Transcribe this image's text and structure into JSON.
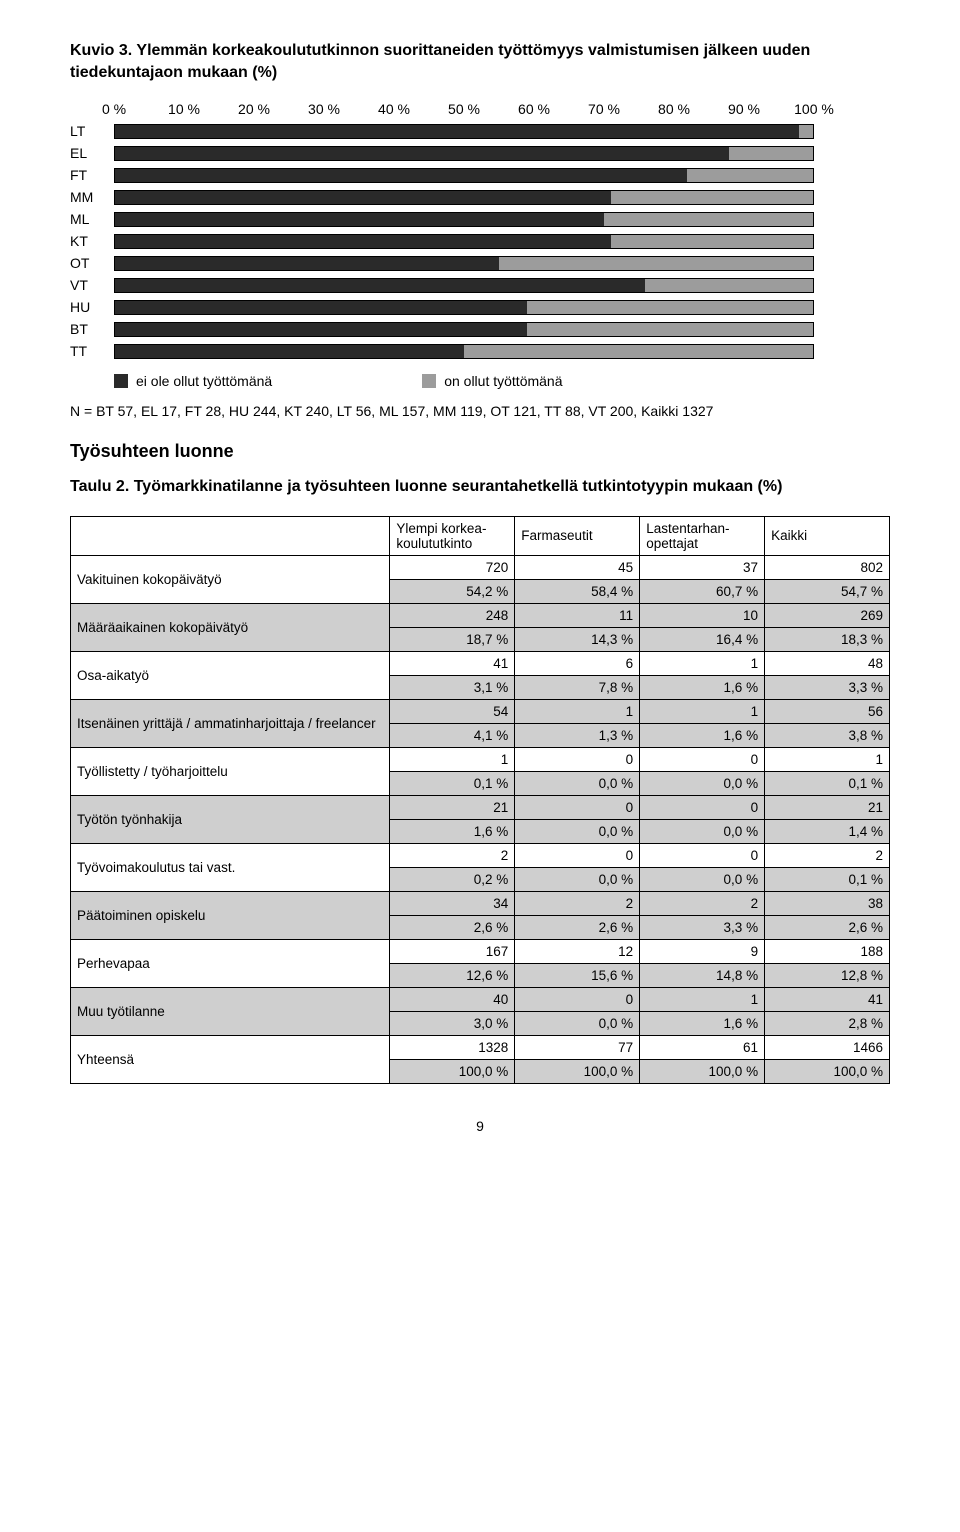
{
  "chart": {
    "caption_prefix": "Kuvio 3.",
    "caption_rest": " Ylemmän korkeakoulututkinnon suorittaneiden työttömyys valmistumisen jälkeen uuden tiedekuntajaon mukaan (%)",
    "type": "stacked-bar",
    "x_ticks": [
      "0 %",
      "10 %",
      "20 %",
      "30 %",
      "40 %",
      "50 %",
      "60 %",
      "70 %",
      "80 %",
      "90 %",
      "100 %"
    ],
    "legend": {
      "not": "ei ole ollut työttömänä",
      "yes": "on ollut työttömänä"
    },
    "colors": {
      "not": "#2a2a2a",
      "yes": "#9c9c9c",
      "border": "#000000",
      "bg": "#ffffff"
    },
    "rows": [
      {
        "label": "LT",
        "not": 98,
        "total": 100
      },
      {
        "label": "EL",
        "not": 88,
        "total": 100
      },
      {
        "label": "FT",
        "not": 82,
        "total": 100
      },
      {
        "label": "MM",
        "not": 71,
        "total": 100
      },
      {
        "label": "ML",
        "not": 70,
        "total": 100
      },
      {
        "label": "KT",
        "not": 71,
        "total": 100
      },
      {
        "label": "OT",
        "not": 55,
        "total": 100
      },
      {
        "label": "VT",
        "not": 76,
        "total": 100
      },
      {
        "label": "HU",
        "not": 59,
        "total": 100
      },
      {
        "label": "BT",
        "not": 59,
        "total": 100
      },
      {
        "label": "TT",
        "not": 50,
        "total": 100
      }
    ],
    "n_line": "N = BT 57,  EL 17, FT 28,  HU 244, KT 240, LT 56, ML 157, MM 119, OT 121, TT 88, VT 200, Kaikki 1327"
  },
  "section_heading": "Työsuhteen luonne",
  "table": {
    "caption_prefix": "Taulu 2.",
    "caption_rest": " Työmarkkinatilanne ja työsuhteen luonne seurantahetkellä tutkintotyypin mukaan (%)",
    "columns": [
      "",
      "Ylempi korkea­koulututkinto",
      "Farmaseutit",
      "Lastentarhan­opettajat",
      "Kaikki"
    ],
    "groups": [
      {
        "label": "Vakituinen kokopäivätyö",
        "vals": [
          "720",
          "45",
          "37",
          "802"
        ],
        "pcts": [
          "54,2 %",
          "58,4 %",
          "60,7 %",
          "54,7 %"
        ]
      },
      {
        "label": "Määräaikainen kokopäivätyö",
        "vals": [
          "248",
          "11",
          "10",
          "269"
        ],
        "pcts": [
          "18,7 %",
          "14,3 %",
          "16,4 %",
          "18,3 %"
        ]
      },
      {
        "label": "Osa-aikatyö",
        "vals": [
          "41",
          "6",
          "1",
          "48"
        ],
        "pcts": [
          "3,1 %",
          "7,8 %",
          "1,6 %",
          "3,3 %"
        ]
      },
      {
        "label": "Itsenäinen yrittäjä / ammatinharjoittaja / freelancer",
        "vals": [
          "54",
          "1",
          "1",
          "56"
        ],
        "pcts": [
          "4,1 %",
          "1,3 %",
          "1,6 %",
          "3,8 %"
        ]
      },
      {
        "label": "Työllistetty / työharjoittelu",
        "vals": [
          "1",
          "0",
          "0",
          "1"
        ],
        "pcts": [
          "0,1 %",
          "0,0 %",
          "0,0 %",
          "0,1 %"
        ]
      },
      {
        "label": "Työtön työnhakija",
        "vals": [
          "21",
          "0",
          "0",
          "21"
        ],
        "pcts": [
          "1,6 %",
          "0,0 %",
          "0,0 %",
          "1,4 %"
        ]
      },
      {
        "label": "Työvoimakoulutus tai vast.",
        "vals": [
          "2",
          "0",
          "0",
          "2"
        ],
        "pcts": [
          "0,2 %",
          "0,0 %",
          "0,0 %",
          "0,1 %"
        ]
      },
      {
        "label": "Päätoiminen opiskelu",
        "vals": [
          "34",
          "2",
          "2",
          "38"
        ],
        "pcts": [
          "2,6 %",
          "2,6 %",
          "3,3 %",
          "2,6 %"
        ]
      },
      {
        "label": "Perhevapaa",
        "vals": [
          "167",
          "12",
          "9",
          "188"
        ],
        "pcts": [
          "12,6 %",
          "15,6 %",
          "14,8 %",
          "12,8 %"
        ]
      },
      {
        "label": "Muu työtilanne",
        "vals": [
          "40",
          "0",
          "1",
          "41"
        ],
        "pcts": [
          "3,0 %",
          "0,0 %",
          "1,6 %",
          "2,8 %"
        ]
      },
      {
        "label": "Yhteensä",
        "vals": [
          "1328",
          "77",
          "61",
          "1466"
        ],
        "pcts": [
          "100,0 %",
          "100,0 %",
          "100,0 %",
          "100,0 %"
        ]
      }
    ],
    "shaded_label_rows": [
      1,
      3,
      5,
      7,
      9
    ]
  },
  "page_number": "9"
}
